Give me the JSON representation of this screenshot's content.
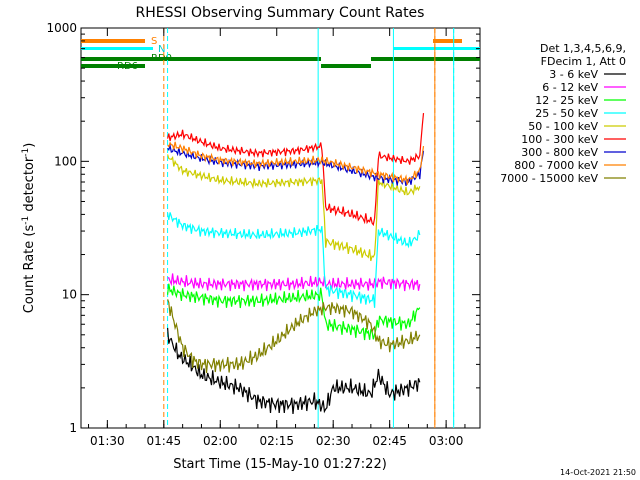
{
  "chart_data": {
    "type": "line",
    "title": "RHESSI Observing Summary Count Rates",
    "xlabel": "Start Time (15-May-10 01:27:22)",
    "ylabel": "Count Rate (s",
    "ylabel_sup": "-1",
    "ylabel_mid": " detector",
    "ylabel_end": ")",
    "y_scale": "log",
    "ylim": [
      1,
      1000
    ],
    "xlim": [
      "01:23",
      "03:09"
    ],
    "x_ticks": [
      "01:30",
      "01:45",
      "02:00",
      "02:15",
      "02:30",
      "02:45",
      "03:00"
    ],
    "y_ticks": [
      "1",
      "10",
      "100",
      "1000"
    ],
    "legend_header": [
      "Det 1,3,4,5,6,9,",
      "FDecim 1, Att 0"
    ],
    "series": [
      {
        "name": "3 - 6 keV",
        "color": "#000000",
        "x": [
          "01:46",
          "01:49",
          "01:52",
          "01:55",
          "02:00",
          "02:05",
          "02:10",
          "02:15",
          "02:20",
          "02:25",
          "02:28",
          "02:30",
          "02:35",
          "02:40",
          "02:42",
          "02:45",
          "02:50",
          "02:53"
        ],
        "y": [
          5,
          3.5,
          3,
          2.5,
          2.2,
          2,
          1.6,
          1.5,
          1.5,
          1.6,
          1.4,
          2,
          2,
          1.8,
          2.5,
          1.8,
          2,
          2.2
        ]
      },
      {
        "name": "6 - 12 keV",
        "color": "#ff00ff",
        "x": [
          "01:46",
          "01:50",
          "01:55",
          "02:00",
          "02:10",
          "02:20",
          "02:27",
          "02:28",
          "02:35",
          "02:41",
          "02:42",
          "02:50",
          "02:53"
        ],
        "y": [
          13,
          12.5,
          12,
          12,
          12,
          12,
          12.5,
          12,
          12,
          12,
          12.5,
          12,
          12
        ]
      },
      {
        "name": "12 - 25 keV",
        "color": "#00ff00",
        "x": [
          "01:46",
          "01:50",
          "01:55",
          "02:00",
          "02:10",
          "02:20",
          "02:27",
          "02:28",
          "02:35",
          "02:41",
          "02:42",
          "02:50",
          "02:53"
        ],
        "y": [
          11,
          10,
          9.5,
          9,
          9,
          9.5,
          10,
          6,
          5.5,
          5,
          6.5,
          6,
          8
        ]
      },
      {
        "name": "25 - 50 keV",
        "color": "#00ffff",
        "x": [
          "01:46",
          "01:50",
          "01:55",
          "02:00",
          "02:10",
          "02:20",
          "02:27",
          "02:28",
          "02:35",
          "02:41",
          "02:42",
          "02:50",
          "02:53"
        ],
        "y": [
          40,
          33,
          30,
          29,
          28,
          29,
          31,
          11,
          10,
          9,
          30,
          24,
          28
        ]
      },
      {
        "name": "50 - 100 keV",
        "color": "#cccc00",
        "x": [
          "01:46",
          "01:50",
          "01:55",
          "02:00",
          "02:10",
          "02:20",
          "02:27",
          "02:28",
          "02:35",
          "02:41",
          "02:42",
          "02:50",
          "02:53"
        ],
        "y": [
          110,
          85,
          78,
          72,
          68,
          70,
          72,
          25,
          22,
          19,
          70,
          58,
          65
        ]
      },
      {
        "name": "100 - 300 keV",
        "color": "#ff0000",
        "x": [
          "01:46",
          "01:50",
          "01:55",
          "02:00",
          "02:10",
          "02:20",
          "02:27",
          "02:28",
          "02:35",
          "02:41",
          "02:42",
          "02:50",
          "02:53",
          "02:54"
        ],
        "y": [
          150,
          160,
          140,
          125,
          115,
          120,
          130,
          45,
          40,
          35,
          110,
          100,
          110,
          230
        ]
      },
      {
        "name": "300 - 800 keV",
        "color": "#0000cc",
        "x": [
          "01:46",
          "01:50",
          "01:55",
          "02:00",
          "02:10",
          "02:20",
          "02:27",
          "02:35",
          "02:42",
          "02:50",
          "02:53",
          "02:54"
        ],
        "y": [
          125,
          115,
          105,
          98,
          92,
          95,
          98,
          85,
          75,
          70,
          80,
          120
        ]
      },
      {
        "name": "800 - 7000 keV",
        "color": "#ff8000",
        "x": [
          "01:46",
          "01:50",
          "01:55",
          "02:00",
          "02:10",
          "02:20",
          "02:27",
          "02:35",
          "02:42",
          "02:50",
          "02:53",
          "02:54"
        ],
        "y": [
          135,
          125,
          110,
          102,
          96,
          100,
          102,
          90,
          80,
          72,
          85,
          130
        ]
      },
      {
        "name": "7000 - 15000 keV",
        "color": "#808000",
        "x": [
          "01:46",
          "01:48",
          "01:50",
          "01:53",
          "01:55",
          "02:00",
          "02:05",
          "02:10",
          "02:15",
          "02:20",
          "02:25",
          "02:28",
          "02:30",
          "02:35",
          "02:40",
          "02:42",
          "02:45",
          "02:50",
          "02:53"
        ],
        "y": [
          9,
          6,
          4,
          3.2,
          3,
          3,
          3,
          3.5,
          4.5,
          6,
          7.5,
          8,
          8,
          7.5,
          6,
          4.5,
          4.2,
          4.5,
          5
        ]
      }
    ],
    "markers": {
      "flag_labels": [
        "S",
        "N",
        "RD0",
        "RD6"
      ],
      "dashed_orange_at": [
        "01:45",
        "02:57"
      ],
      "dashed_cyan_at": [
        "01:46",
        "03:02"
      ],
      "solid_cyan_at": [
        "02:26",
        "02:46",
        "03:02"
      ],
      "solid_orange_at": [
        "02:57"
      ]
    },
    "timestamp": "14-Oct-2021 21:50"
  }
}
